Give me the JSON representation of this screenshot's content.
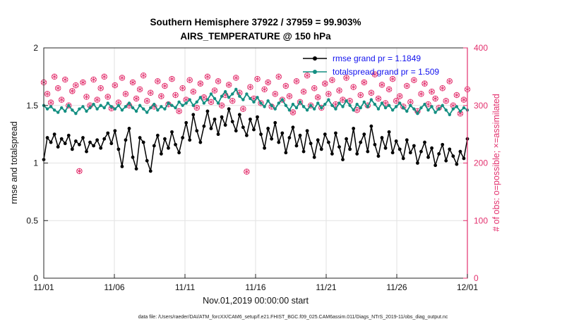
{
  "chart_data": {
    "type": "line",
    "title": "Southern Hemisphere 37922 / 37959 = 99.903%",
    "subtitle": "AIRS_TEMPERATURE @ 150 hPa",
    "xlabel": "Nov.01,2019 00:00:00 start",
    "ylabel_left": "rmse and totalspread",
    "ylabel_right": "# of obs: o=possible; ×=assimilated",
    "x_range_days": [
      0,
      30
    ],
    "x_tick_positions": [
      0,
      5,
      10,
      15,
      20,
      25,
      30
    ],
    "x_tick_labels": [
      "11/01",
      "11/06",
      "11/11",
      "11/16",
      "11/21",
      "11/26",
      "12/01"
    ],
    "ylim_left": [
      0,
      2
    ],
    "yticks_left": [
      0,
      0.5,
      1,
      1.5,
      2
    ],
    "ylim_right": [
      0,
      400
    ],
    "yticks_right": [
      0,
      100,
      200,
      300,
      400
    ],
    "grid": true,
    "axis_color": "#262626",
    "grid_color": "#e2e2e2",
    "series": [
      {
        "name": "rmse",
        "grand_mean_label": "rmse grand pr = 1.1849",
        "color": "#000000",
        "values": [
          1.03,
          1.22,
          1.18,
          1.25,
          1.14,
          1.21,
          1.17,
          1.24,
          1.12,
          1.19,
          1.16,
          1.22,
          1.1,
          1.18,
          1.15,
          1.2,
          1.13,
          1.21,
          1.26,
          1.17,
          1.28,
          1.12,
          0.97,
          1.2,
          1.3,
          1.05,
          0.95,
          1.22,
          1.18,
          1.02,
          0.93,
          1.15,
          1.24,
          1.08,
          1.21,
          1.13,
          1.27,
          1.16,
          1.09,
          1.22,
          1.35,
          1.2,
          1.42,
          1.28,
          1.18,
          1.32,
          1.45,
          1.3,
          1.38,
          1.25,
          1.4,
          1.33,
          1.47,
          1.36,
          1.28,
          1.42,
          1.31,
          1.24,
          1.38,
          1.29,
          1.4,
          1.25,
          1.13,
          1.3,
          1.21,
          1.35,
          1.18,
          1.26,
          1.09,
          1.22,
          1.31,
          1.15,
          1.24,
          1.1,
          1.28,
          1.17,
          1.05,
          1.2,
          1.12,
          1.25,
          1.18,
          1.08,
          1.26,
          1.14,
          1.03,
          1.21,
          1.12,
          1.3,
          1.08,
          1.18,
          1.25,
          1.1,
          1.32,
          1.16,
          1.06,
          1.22,
          1.13,
          1.27,
          1.09,
          1.19,
          1.12,
          1.04,
          1.2,
          1.09,
          1.15,
          1.0,
          1.1,
          1.18,
          1.05,
          1.13,
          0.98,
          1.08,
          1.16,
          1.02,
          1.12,
          1.06,
          0.99,
          1.1,
          1.04,
          1.21
        ]
      },
      {
        "name": "totalspread",
        "grand_mean_label": "totalspread grand pr = 1.509",
        "color": "#148f82",
        "values": [
          1.5,
          1.47,
          1.49,
          1.46,
          1.44,
          1.48,
          1.45,
          1.5,
          1.46,
          1.43,
          1.47,
          1.49,
          1.45,
          1.48,
          1.51,
          1.47,
          1.5,
          1.48,
          1.52,
          1.49,
          1.47,
          1.5,
          1.46,
          1.49,
          1.52,
          1.48,
          1.45,
          1.5,
          1.47,
          1.44,
          1.48,
          1.51,
          1.46,
          1.49,
          1.47,
          1.52,
          1.5,
          1.48,
          1.53,
          1.5,
          1.52,
          1.55,
          1.5,
          1.53,
          1.57,
          1.52,
          1.55,
          1.6,
          1.56,
          1.52,
          1.58,
          1.62,
          1.57,
          1.6,
          1.64,
          1.58,
          1.55,
          1.6,
          1.56,
          1.53,
          1.57,
          1.52,
          1.49,
          1.54,
          1.5,
          1.47,
          1.52,
          1.55,
          1.5,
          1.46,
          1.51,
          1.48,
          1.53,
          1.49,
          1.46,
          1.5,
          1.47,
          1.52,
          1.48,
          1.51,
          1.55,
          1.5,
          1.47,
          1.52,
          1.49,
          1.54,
          1.5,
          1.46,
          1.51,
          1.48,
          1.53,
          1.49,
          1.55,
          1.51,
          1.47,
          1.52,
          1.48,
          1.5,
          1.46,
          1.49,
          1.52,
          1.48,
          1.45,
          1.5,
          1.47,
          1.43,
          1.48,
          1.51,
          1.46,
          1.49,
          1.44,
          1.47,
          1.5,
          1.46,
          1.42,
          1.47,
          1.49,
          1.45,
          1.48,
          1.46
        ]
      }
    ],
    "obs_series": {
      "name": "# of obs (possible = assimilated markers)",
      "color": "#e3316e",
      "marker": "circle-asterisk",
      "values": [
        340,
        320,
        305,
        350,
        330,
        310,
        345,
        300,
        325,
        335,
        186,
        340,
        315,
        300,
        345,
        310,
        330,
        350,
        315,
        295,
        335,
        305,
        348,
        320,
        300,
        340,
        312,
        328,
        352,
        308,
        322,
        298,
        342,
        316,
        334,
        302,
        346,
        318,
        290,
        330,
        310,
        344,
        324,
        296,
        338,
        314,
        350,
        306,
        326,
        342,
        300,
        318,
        336,
        308,
        348,
        322,
        294,
        185,
        332,
        312,
        346,
        304,
        328,
        340,
        298,
        320,
        350,
        310,
        334,
        316,
        288,
        342,
        306,
        324,
        352,
        300,
        330,
        314,
        296,
        338,
        320,
        344,
        302,
        326,
        310,
        348,
        308,
        332,
        292,
        318,
        340,
        300,
        322,
        354,
        312,
        336,
        304,
        328,
        346,
        308,
        316,
        298,
        334,
        306,
        344,
        290,
        320,
        338,
        302,
        324,
        312,
        296,
        330,
        308,
        342,
        300,
        318,
        286,
        310,
        328
      ]
    }
  },
  "legend": {
    "text_color": "#1111ee",
    "entries": [
      {
        "label": "rmse grand pr = 1.1849"
      },
      {
        "label": "totalspread grand pr = 1.509"
      }
    ]
  },
  "footer": {
    "caption": "data file: /Users/raeder/DAI/ATM_forcXX/CAM6_setup/f.e21.FHIST_BGC.f09_025.CAM6assim.011/Diags_NTrS_2019-11/obs_diag_output.nc"
  }
}
